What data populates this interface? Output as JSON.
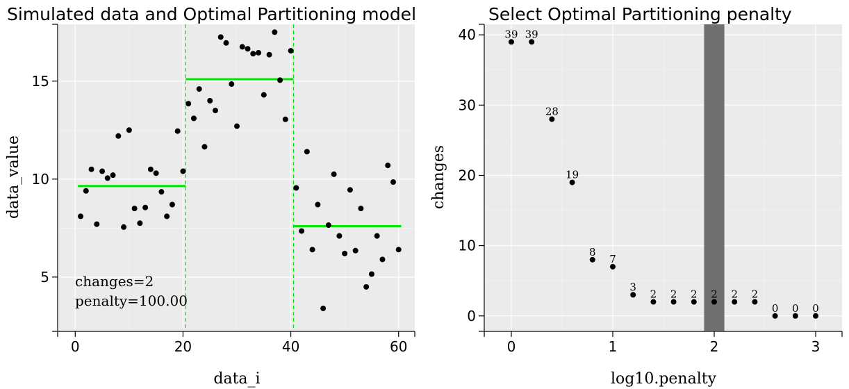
{
  "chart_data": [
    {
      "type": "scatter",
      "title": "Simulated data and Optimal Partitioning model",
      "xlabel": "data_i",
      "ylabel": "data_value",
      "xlim": [
        -3,
        63
      ],
      "ylim": [
        2.3,
        17.9
      ],
      "xticks": [
        0,
        20,
        40,
        60
      ],
      "yticks": [
        5,
        10,
        15
      ],
      "tick_labels_x": [
        "0",
        "20",
        "40",
        "60"
      ],
      "tick_labels_y": [
        "5",
        "10",
        "15"
      ],
      "points": [
        {
          "x": 1,
          "y": 8.1
        },
        {
          "x": 2,
          "y": 9.4
        },
        {
          "x": 3,
          "y": 10.5
        },
        {
          "x": 4,
          "y": 7.7
        },
        {
          "x": 5,
          "y": 10.4
        },
        {
          "x": 6,
          "y": 10.05
        },
        {
          "x": 7,
          "y": 10.2
        },
        {
          "x": 8,
          "y": 12.2
        },
        {
          "x": 9,
          "y": 7.55
        },
        {
          "x": 10,
          "y": 12.5
        },
        {
          "x": 11,
          "y": 8.5
        },
        {
          "x": 12,
          "y": 7.75
        },
        {
          "x": 13,
          "y": 8.55
        },
        {
          "x": 14,
          "y": 10.5
        },
        {
          "x": 15,
          "y": 10.3
        },
        {
          "x": 16,
          "y": 9.35
        },
        {
          "x": 17,
          "y": 8.1
        },
        {
          "x": 18,
          "y": 8.7
        },
        {
          "x": 19,
          "y": 12.45
        },
        {
          "x": 20,
          "y": 10.4
        },
        {
          "x": 21,
          "y": 13.85
        },
        {
          "x": 22,
          "y": 13.1
        },
        {
          "x": 23,
          "y": 14.6
        },
        {
          "x": 24,
          "y": 11.65
        },
        {
          "x": 25,
          "y": 14.0
        },
        {
          "x": 26,
          "y": 13.5
        },
        {
          "x": 27,
          "y": 17.25
        },
        {
          "x": 28,
          "y": 16.95
        },
        {
          "x": 29,
          "y": 14.85
        },
        {
          "x": 30,
          "y": 12.7
        },
        {
          "x": 31,
          "y": 16.75
        },
        {
          "x": 32,
          "y": 16.65
        },
        {
          "x": 33,
          "y": 16.4
        },
        {
          "x": 34,
          "y": 16.45
        },
        {
          "x": 35,
          "y": 14.3
        },
        {
          "x": 36,
          "y": 16.35
        },
        {
          "x": 37,
          "y": 17.5
        },
        {
          "x": 38,
          "y": 15.05
        },
        {
          "x": 39,
          "y": 13.05
        },
        {
          "x": 40,
          "y": 16.55
        },
        {
          "x": 41,
          "y": 9.55
        },
        {
          "x": 42,
          "y": 7.35
        },
        {
          "x": 43,
          "y": 11.4
        },
        {
          "x": 44,
          "y": 6.4
        },
        {
          "x": 45,
          "y": 8.7
        },
        {
          "x": 46,
          "y": 3.4
        },
        {
          "x": 47,
          "y": 7.65
        },
        {
          "x": 48,
          "y": 10.25
        },
        {
          "x": 49,
          "y": 7.1
        },
        {
          "x": 50,
          "y": 6.2
        },
        {
          "x": 51,
          "y": 9.45
        },
        {
          "x": 52,
          "y": 6.35
        },
        {
          "x": 53,
          "y": 8.5
        },
        {
          "x": 54,
          "y": 4.5
        },
        {
          "x": 55,
          "y": 5.15
        },
        {
          "x": 56,
          "y": 7.1
        },
        {
          "x": 57,
          "y": 5.9
        },
        {
          "x": 58,
          "y": 10.7
        },
        {
          "x": 59,
          "y": 9.85
        },
        {
          "x": 60,
          "y": 6.4
        }
      ],
      "segments": [
        {
          "x_start": 0.5,
          "x_end": 20.5,
          "mean": 9.65
        },
        {
          "x_start": 20.5,
          "x_end": 40.5,
          "mean": 15.1
        },
        {
          "x_start": 40.5,
          "x_end": 60.5,
          "mean": 7.6
        }
      ],
      "changepoints": [
        20.5,
        40.5
      ],
      "model_color": "#00e600",
      "point_color": "#000000",
      "annotations": {
        "changes": "changes=2",
        "penalty": "penalty=100.00"
      }
    },
    {
      "type": "scatter",
      "title": "Select Optimal Partitioning penalty",
      "xlabel": "log10.penalty",
      "ylabel": "changes",
      "xlim": [
        -0.26,
        3.26
      ],
      "ylim": [
        -2.0,
        41.5
      ],
      "xticks": [
        0,
        1,
        2,
        3
      ],
      "yticks": [
        0,
        10,
        20,
        30,
        40
      ],
      "tick_labels_x": [
        "0",
        "1",
        "2",
        "3"
      ],
      "tick_labels_y": [
        "0",
        "10",
        "20",
        "30",
        "40"
      ],
      "points": [
        {
          "x": 0.0,
          "y": 39,
          "label": "39"
        },
        {
          "x": 0.2,
          "y": 39,
          "label": "39"
        },
        {
          "x": 0.4,
          "y": 28,
          "label": "28"
        },
        {
          "x": 0.6,
          "y": 19,
          "label": "19"
        },
        {
          "x": 0.8,
          "y": 8,
          "label": "8"
        },
        {
          "x": 1.0,
          "y": 7,
          "label": "7"
        },
        {
          "x": 1.2,
          "y": 3,
          "label": "3"
        },
        {
          "x": 1.4,
          "y": 2,
          "label": "2"
        },
        {
          "x": 1.6,
          "y": 2,
          "label": "2"
        },
        {
          "x": 1.8,
          "y": 2,
          "label": "2"
        },
        {
          "x": 2.0,
          "y": 2,
          "label": "2"
        },
        {
          "x": 2.2,
          "y": 2,
          "label": "2"
        },
        {
          "x": 2.4,
          "y": 2,
          "label": "2"
        },
        {
          "x": 2.6,
          "y": 0,
          "label": "0"
        },
        {
          "x": 2.8,
          "y": 0,
          "label": "0"
        },
        {
          "x": 3.0,
          "y": 0,
          "label": "0"
        }
      ],
      "selected_band": {
        "x_start": 1.9,
        "x_end": 2.1
      },
      "band_color": "#707070",
      "point_color": "#000000"
    }
  ]
}
